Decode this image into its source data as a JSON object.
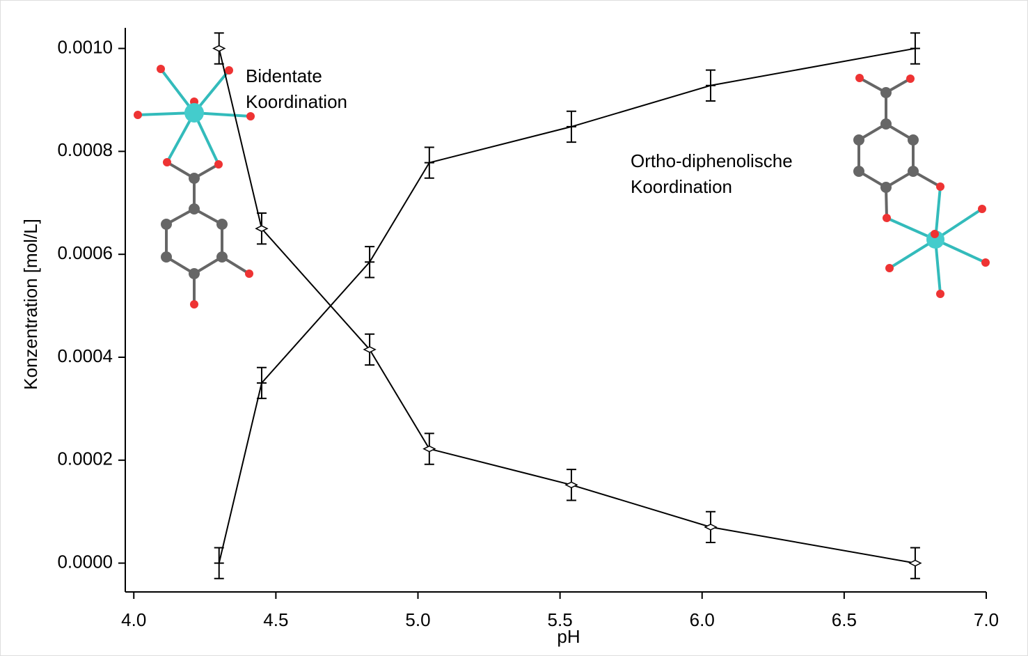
{
  "chart_data": {
    "type": "line",
    "x_label": "pH",
    "y_label": "Konzentration [mol/L]",
    "x": [
      4.3,
      4.45,
      4.83,
      5.04,
      5.54,
      6.03,
      6.75
    ],
    "series": [
      {
        "color": "#000000",
        "marker": "diamond",
        "values": [
          0.001,
          0.00065,
          0.000415,
          0.000222,
          0.000152,
          7e-05,
          0
        ],
        "errors": [
          3e-05,
          3e-05,
          3e-05,
          3e-05,
          3e-05,
          3e-05,
          3e-05
        ]
      },
      {
        "color": "#000000",
        "marker": "none",
        "values": [
          0,
          0.00035,
          0.000585,
          0.000778,
          0.000848,
          0.000928,
          0.001
        ],
        "errors": [
          3e-05,
          3e-05,
          3e-05,
          3e-05,
          3e-05,
          3e-05,
          3e-05
        ]
      }
    ],
    "xlim": [
      3.97,
      7.0
    ],
    "ylim": [
      -5.6e-05,
      0.00104
    ],
    "xticks": [
      {
        "value": 4,
        "label": "4.0"
      },
      {
        "value": 4.5,
        "label": "4.5"
      },
      {
        "value": 5,
        "label": "5.0"
      },
      {
        "value": 5.5,
        "label": "5.5"
      },
      {
        "value": 6,
        "label": "6.0"
      },
      {
        "value": 6.5,
        "label": "6.5"
      },
      {
        "value": 7,
        "label": "7.0"
      }
    ],
    "yticks": [
      {
        "value": 0,
        "label": "0.0000"
      },
      {
        "value": 0.0002,
        "label": "0.0002"
      },
      {
        "value": 0.0004,
        "label": "0.0004"
      },
      {
        "value": 0.0006,
        "label": "0.0006"
      },
      {
        "value": 0.0008,
        "label": "0.0008"
      },
      {
        "value": 0.001,
        "label": "0.0010"
      }
    ],
    "annotations": [
      [
        "Bidentate",
        "Koordination"
      ],
      [
        "Ortho-diphenolische",
        "Koordination"
      ]
    ]
  }
}
